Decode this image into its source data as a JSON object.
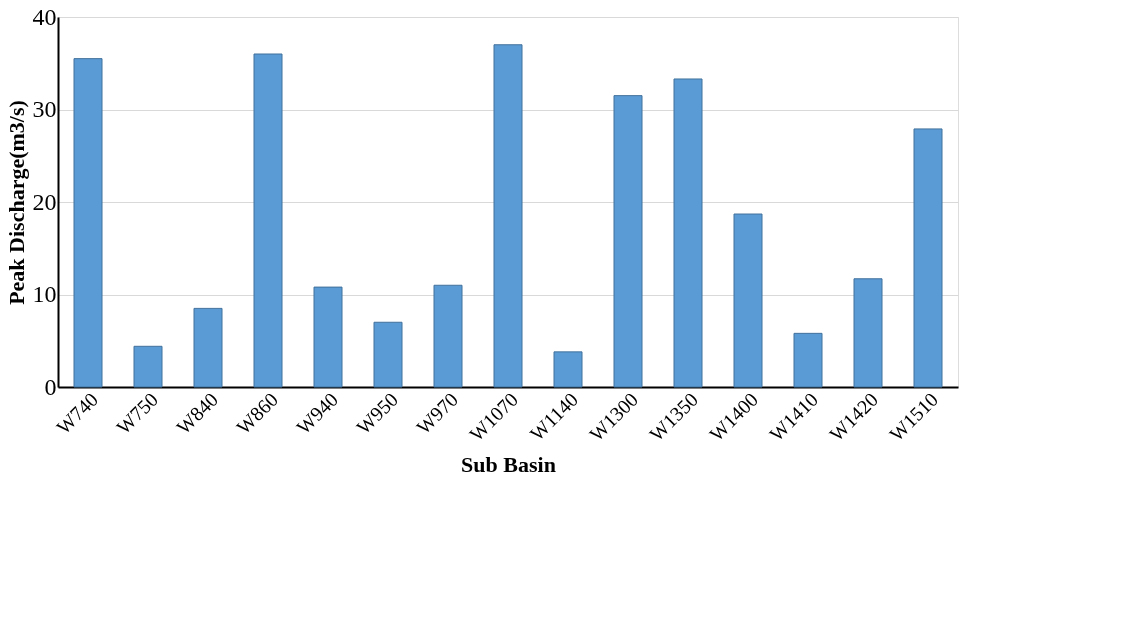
{
  "chart_data": {
    "type": "bar",
    "categories": [
      "W740",
      "W750",
      "W840",
      "W860",
      "W940",
      "W950",
      "W970",
      "W1070",
      "W1140",
      "W1300",
      "W1350",
      "W1400",
      "W1410",
      "W1420",
      "W1510"
    ],
    "values": [
      35.5,
      4.4,
      8.5,
      36,
      10.8,
      7,
      11,
      37,
      3.8,
      31.5,
      33.3,
      18.7,
      5.8,
      11.7,
      27.9
    ],
    "color": "#5b9bd5",
    "xlabel": "Sub Basin",
    "ylabel": "Peak Discharge(m3/s)",
    "ylim": [
      0,
      40
    ],
    "yticks": [
      0,
      10,
      20,
      30,
      40
    ],
    "grid": "y"
  }
}
